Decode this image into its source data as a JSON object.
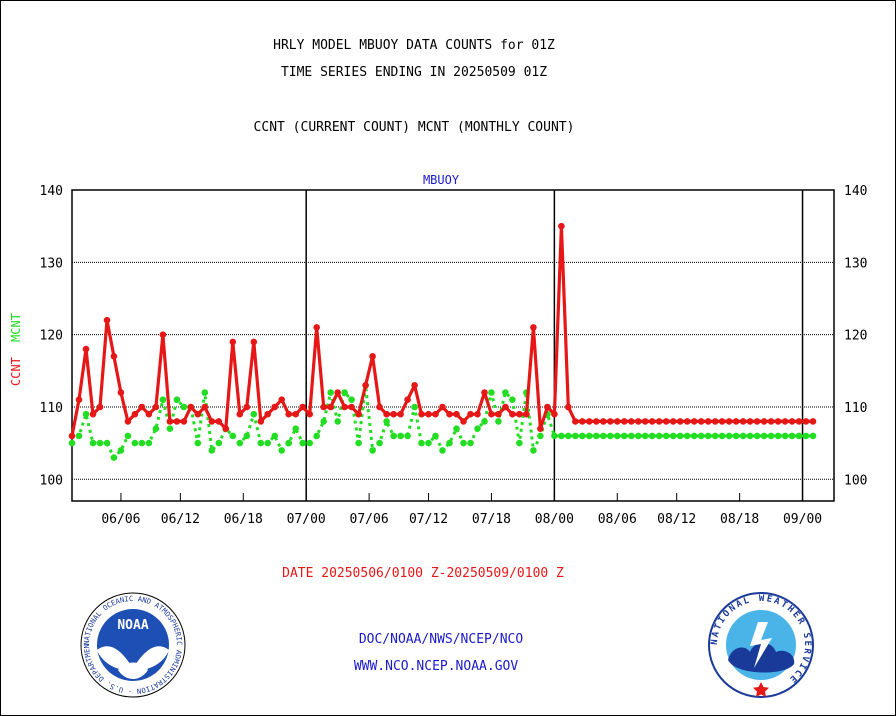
{
  "header": {
    "line1": "HRLY MODEL MBUOY DATA COUNTS for 01Z",
    "line2": "TIME SERIES ENDING IN 20250509 01Z",
    "line3": "CCNT (CURRENT COUNT) MCNT (MONTHLY COUNT)"
  },
  "footer": {
    "date_range": "DATE 20250506/0100 Z-20250509/0100 Z",
    "org": "DOC/NOAA/NWS/NCEP/NCO",
    "url": "WWW.NCO.NCEP.NOAA.GOV"
  },
  "logos": {
    "noaa": {
      "text": "NOAA",
      "ring_text": "NATIONAL OCEANIC AND ATMOSPHERIC ADMINISTRATION · U.S. DEPARTMENT OF COMMERCE ·"
    },
    "nws": {
      "ring_text": "NATIONAL WEATHER SERVICE"
    }
  },
  "colors": {
    "ccnt": "#e61717",
    "mcnt": "#22dd22",
    "title_blue": "#1a1acc"
  },
  "chart_data": {
    "type": "line",
    "title": "MBUOY",
    "ylabel_ccnt": "CCNT",
    "ylabel_mcnt": "MCNT",
    "ylim": [
      97,
      140
    ],
    "yticks": [
      100,
      110,
      120,
      130,
      140
    ],
    "xlim": [
      0,
      109
    ],
    "xticks": [
      {
        "x": 7,
        "label": "06/06"
      },
      {
        "x": 15.5,
        "label": "06/12"
      },
      {
        "x": 24.5,
        "label": "06/18"
      },
      {
        "x": 33.5,
        "label": "07/00"
      },
      {
        "x": 42.5,
        "label": "07/06"
      },
      {
        "x": 51,
        "label": "07/12"
      },
      {
        "x": 60,
        "label": "07/18"
      },
      {
        "x": 69,
        "label": "08/00"
      },
      {
        "x": 78,
        "label": "08/06"
      },
      {
        "x": 86.5,
        "label": "08/12"
      },
      {
        "x": 95.5,
        "label": "08/18"
      },
      {
        "x": 104.5,
        "label": "09/00"
      }
    ],
    "day_lines": [
      33.5,
      69,
      104.5
    ],
    "grid": "horizontal dotted",
    "series": [
      {
        "name": "CCNT",
        "color": "#e61717",
        "x": [
          0,
          1,
          2,
          3,
          4,
          5,
          6,
          7,
          8,
          9,
          10,
          11,
          12,
          13,
          14,
          15,
          16,
          17,
          18,
          19,
          20,
          21,
          22,
          23,
          24,
          25,
          26,
          27,
          28,
          29,
          30,
          31,
          32,
          33,
          34,
          35,
          36,
          37,
          38,
          39,
          40,
          41,
          42,
          43,
          44,
          45,
          46,
          47,
          48,
          49,
          50,
          51,
          52,
          53,
          54,
          55,
          56,
          57,
          58,
          59,
          60,
          61,
          62,
          63,
          64,
          65,
          66,
          67,
          68,
          69,
          70,
          71,
          72,
          73,
          74,
          75,
          76,
          77,
          78,
          79,
          80,
          81,
          82,
          83,
          84,
          85,
          86,
          87,
          88,
          89,
          90,
          91,
          92,
          93,
          94,
          95,
          96,
          97,
          98,
          99,
          100,
          101,
          102,
          103,
          104,
          105,
          106
        ],
        "values": [
          106,
          111,
          118,
          109,
          110,
          122,
          117,
          112,
          108,
          109,
          110,
          109,
          110,
          120,
          108,
          108,
          108,
          110,
          109,
          110,
          108,
          108,
          107,
          119,
          109,
          110,
          119,
          108,
          109,
          110,
          111,
          109,
          109,
          110,
          109,
          121,
          110,
          110,
          112,
          110,
          110,
          109,
          113,
          117,
          110,
          109,
          109,
          109,
          111,
          113,
          109,
          109,
          109,
          110,
          109,
          109,
          108,
          109,
          109,
          112,
          109,
          109,
          110,
          109,
          109,
          109,
          121,
          107,
          110,
          109,
          135,
          110,
          108,
          108,
          108,
          108,
          108,
          108,
          108,
          108,
          108,
          108,
          108,
          108,
          108,
          108,
          108,
          108,
          108,
          108,
          108,
          108,
          108,
          108,
          108,
          108,
          108,
          108,
          108,
          108,
          108,
          108,
          108,
          108,
          108,
          108,
          108
        ]
      },
      {
        "name": "MCNT",
        "color": "#22dd22",
        "x": [
          0,
          1,
          2,
          3,
          4,
          5,
          6,
          7,
          8,
          9,
          10,
          11,
          12,
          13,
          14,
          15,
          16,
          17,
          18,
          19,
          20,
          21,
          22,
          23,
          24,
          25,
          26,
          27,
          28,
          29,
          30,
          31,
          32,
          33,
          34,
          35,
          36,
          37,
          38,
          39,
          40,
          41,
          42,
          43,
          44,
          45,
          46,
          47,
          48,
          49,
          50,
          51,
          52,
          53,
          54,
          55,
          56,
          57,
          58,
          59,
          60,
          61,
          62,
          63,
          64,
          65,
          66,
          67,
          68,
          69,
          70,
          71,
          72,
          73,
          74,
          75,
          76,
          77,
          78,
          79,
          80,
          81,
          82,
          83,
          84,
          85,
          86,
          87,
          88,
          89,
          90,
          91,
          92,
          93,
          94,
          95,
          96,
          97,
          98,
          99,
          100,
          101,
          102,
          103,
          104,
          105,
          106
        ],
        "values": [
          105,
          106,
          109,
          105,
          105,
          105,
          103,
          104,
          106,
          105,
          105,
          105,
          107,
          111,
          107,
          111,
          110,
          110,
          105,
          112,
          104,
          105,
          107,
          106,
          105,
          106,
          109,
          105,
          105,
          106,
          104,
          105,
          107,
          105,
          105,
          106,
          108,
          112,
          108,
          112,
          111,
          105,
          113,
          104,
          105,
          108,
          106,
          106,
          106,
          110,
          105,
          105,
          106,
          104,
          105,
          107,
          105,
          105,
          107,
          108,
          112,
          108,
          112,
          111,
          105,
          112,
          104,
          106,
          109,
          106,
          106,
          106,
          106,
          106,
          106,
          106,
          106,
          106,
          106,
          106,
          106,
          106,
          106,
          106,
          106,
          106,
          106,
          106,
          106,
          106,
          106,
          106,
          106,
          106,
          106,
          106,
          106,
          106,
          106,
          106,
          106,
          106,
          106,
          106,
          106,
          106,
          106
        ]
      }
    ]
  }
}
